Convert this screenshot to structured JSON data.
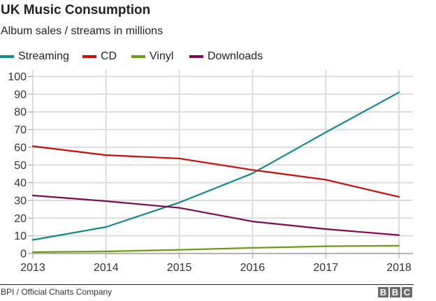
{
  "chart_data": {
    "type": "line",
    "title": "UK Music Consumption",
    "subtitle": "Album sales / streams in millions",
    "xlabel": "",
    "ylabel": "",
    "x": [
      "2013",
      "2014",
      "2015",
      "2016",
      "2017",
      "2018"
    ],
    "ylim": [
      0,
      100
    ],
    "yticks": [
      0,
      10,
      20,
      30,
      40,
      50,
      60,
      70,
      80,
      90,
      100
    ],
    "grid": true,
    "legend_position": "top-left",
    "series": [
      {
        "name": "Streaming",
        "color": "#128a8c",
        "values": [
          7.7,
          15.0,
          28.8,
          45.3,
          68.5,
          91.0
        ]
      },
      {
        "name": "CD",
        "color": "#cc0a0a",
        "values": [
          60.6,
          55.6,
          53.7,
          47.2,
          41.7,
          32.0
        ]
      },
      {
        "name": "Vinyl",
        "color": "#6b9c0f",
        "values": [
          0.8,
          1.2,
          2.1,
          3.2,
          4.1,
          4.4
        ]
      },
      {
        "name": "Downloads",
        "color": "#7d0a58",
        "values": [
          32.8,
          29.6,
          25.8,
          18.1,
          13.8,
          10.4
        ]
      }
    ]
  },
  "footer": {
    "source": "BPI / Official Charts Company",
    "logo_letters": [
      "B",
      "B",
      "C"
    ]
  }
}
